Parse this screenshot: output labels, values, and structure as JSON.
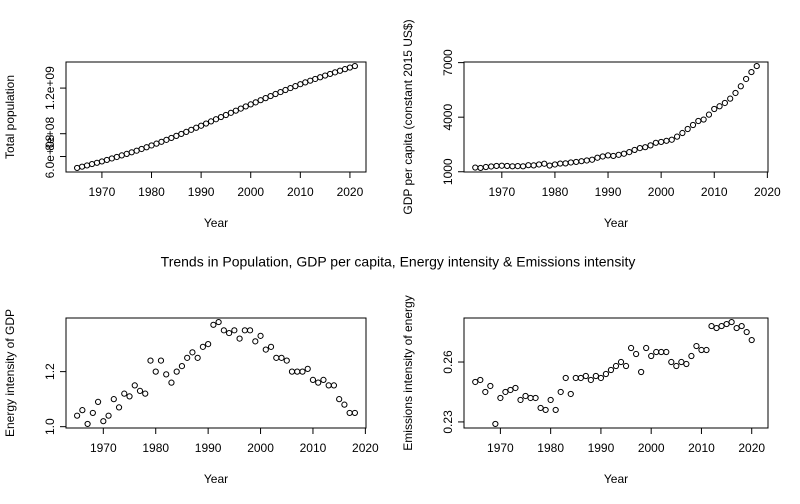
{
  "title": "Trends in Population, GDP per capita, Energy intensity & Emissions intensity",
  "chart_data": [
    {
      "type": "scatter",
      "xlabel": "Year",
      "ylabel": "Total population",
      "x": [
        1965,
        1966,
        1967,
        1968,
        1969,
        1970,
        1971,
        1972,
        1973,
        1974,
        1975,
        1976,
        1977,
        1978,
        1979,
        1980,
        1981,
        1982,
        1983,
        1984,
        1985,
        1986,
        1987,
        1988,
        1989,
        1990,
        1991,
        1992,
        1993,
        1994,
        1995,
        1996,
        1997,
        1998,
        1999,
        2000,
        2001,
        2002,
        2003,
        2004,
        2005,
        2006,
        2007,
        2008,
        2009,
        2010,
        2011,
        2012,
        2013,
        2014,
        2015,
        2016,
        2017,
        2018,
        2019,
        2020,
        2021
      ],
      "values": [
        500000000.0,
        511000000.0,
        522000000.0,
        534000000.0,
        545000000.0,
        557000000.0,
        570000000.0,
        583000000.0,
        596000000.0,
        610000000.0,
        623000000.0,
        637000000.0,
        651000000.0,
        666000000.0,
        681000000.0,
        697000000.0,
        713000000.0,
        729000000.0,
        746000000.0,
        763000000.0,
        781000000.0,
        798000000.0,
        816000000.0,
        834000000.0,
        852000000.0,
        870000000.0,
        889000000.0,
        908000000.0,
        927000000.0,
        946000000.0,
        964000000.0,
        983000000.0,
        1002000000.0,
        1020000000.0,
        1039000000.0,
        1057000000.0,
        1075000000.0,
        1094000000.0,
        1112000000.0,
        1130000000.0,
        1148000000.0,
        1165000000.0,
        1183000000.0,
        1200000000.0,
        1217000000.0,
        1234000000.0,
        1250000000.0,
        1265000000.0,
        1280000000.0,
        1295000000.0,
        1310000000.0,
        1324000000.0,
        1338000000.0,
        1352000000.0,
        1366000000.0,
        1380000000.0,
        1393000000.0
      ],
      "xlim": [
        1962.76,
        2023.24
      ],
      "xticks": [
        1970,
        1980,
        1990,
        2000,
        2010,
        2020
      ],
      "ylim": [
        464300000.0,
        1428700000.0
      ],
      "yticks": [
        {
          "value": 600000000.0,
          "label": "6.0e+08"
        },
        {
          "value": 800000000.0,
          "label": "8e+08"
        },
        {
          "value": 1200000000.0,
          "label": "1.2e+09"
        }
      ]
    },
    {
      "type": "scatter",
      "xlabel": "Year",
      "ylabel": "GDP per capita (constant 2015 US$)",
      "x": [
        1965,
        1966,
        1967,
        1968,
        1969,
        1970,
        1971,
        1972,
        1973,
        1974,
        1975,
        1976,
        1977,
        1978,
        1979,
        1980,
        1981,
        1982,
        1983,
        1984,
        1985,
        1986,
        1987,
        1988,
        1989,
        1990,
        1991,
        1992,
        1993,
        1994,
        1995,
        1996,
        1997,
        1998,
        1999,
        2000,
        2001,
        2002,
        2003,
        2004,
        2005,
        2006,
        2007,
        2008,
        2009,
        2010,
        2011,
        2012,
        2013,
        2014,
        2015,
        2016,
        2017,
        2018
      ],
      "values": [
        1230,
        1210,
        1260,
        1290,
        1320,
        1330,
        1320,
        1300,
        1310,
        1300,
        1360,
        1350,
        1400,
        1440,
        1340,
        1400,
        1450,
        1460,
        1510,
        1540,
        1580,
        1620,
        1660,
        1770,
        1840,
        1900,
        1870,
        1930,
        1990,
        2080,
        2200,
        2300,
        2350,
        2450,
        2590,
        2640,
        2700,
        2760,
        2930,
        3130,
        3350,
        3570,
        3790,
        3870,
        4140,
        4450,
        4600,
        4780,
        5020,
        5330,
        5700,
        6100,
        6480,
        6810
      ],
      "xlim": [
        1962.88,
        2020.12
      ],
      "xticks": [
        1970,
        1980,
        1990,
        2000,
        2010,
        2020
      ],
      "ylim": [
        986,
        7034
      ],
      "yticks": [
        1000,
        4000,
        7000
      ]
    },
    {
      "type": "scatter",
      "xlabel": "Year",
      "ylabel": "Energy intensity of GDP",
      "x": [
        1965,
        1966,
        1967,
        1968,
        1969,
        1970,
        1971,
        1972,
        1973,
        1974,
        1975,
        1976,
        1977,
        1978,
        1979,
        1980,
        1981,
        1982,
        1983,
        1984,
        1985,
        1986,
        1987,
        1988,
        1989,
        1990,
        1991,
        1992,
        1993,
        1994,
        1995,
        1996,
        1997,
        1998,
        1999,
        2000,
        2001,
        2002,
        2003,
        2004,
        2005,
        2006,
        2007,
        2008,
        2009,
        2010,
        2011,
        2012,
        2013,
        2014,
        2015,
        2016,
        2017,
        2018
      ],
      "values": [
        1.04,
        1.06,
        1.01,
        1.05,
        1.09,
        1.02,
        1.04,
        1.1,
        1.07,
        1.12,
        1.11,
        1.15,
        1.13,
        1.12,
        1.24,
        1.2,
        1.24,
        1.19,
        1.16,
        1.2,
        1.22,
        1.25,
        1.27,
        1.25,
        1.29,
        1.3,
        1.37,
        1.38,
        1.35,
        1.34,
        1.35,
        1.32,
        1.35,
        1.35,
        1.31,
        1.33,
        1.28,
        1.29,
        1.25,
        1.25,
        1.24,
        1.2,
        1.2,
        1.2,
        1.21,
        1.17,
        1.16,
        1.17,
        1.15,
        1.15,
        1.1,
        1.08,
        1.05,
        1.05
      ],
      "xlim": [
        1962.88,
        2020.12
      ],
      "xticks": [
        1970,
        1980,
        1990,
        2000,
        2010,
        2020
      ],
      "ylim": [
        0.9952,
        1.3948
      ],
      "yticks": [
        {
          "value": 1,
          "label": "1.0"
        },
        1.2
      ]
    },
    {
      "type": "scatter",
      "xlabel": "Year",
      "ylabel": "Emissions intensity of energy",
      "x": [
        1965,
        1966,
        1967,
        1968,
        1969,
        1970,
        1971,
        1972,
        1973,
        1974,
        1975,
        1976,
        1977,
        1978,
        1979,
        1980,
        1981,
        1982,
        1983,
        1984,
        1985,
        1986,
        1987,
        1988,
        1989,
        1990,
        1991,
        1992,
        1993,
        1994,
        1995,
        1996,
        1997,
        1998,
        1999,
        2000,
        2001,
        2002,
        2003,
        2004,
        2005,
        2006,
        2007,
        2008,
        2009,
        2010,
        2011,
        2012,
        2013,
        2014,
        2015,
        2016,
        2017,
        2018,
        2019,
        2020
      ],
      "values": [
        0.25,
        0.251,
        0.245,
        0.248,
        0.229,
        0.242,
        0.245,
        0.246,
        0.247,
        0.241,
        0.243,
        0.242,
        0.242,
        0.237,
        0.236,
        0.241,
        0.236,
        0.245,
        0.252,
        0.244,
        0.252,
        0.252,
        0.253,
        0.251,
        0.253,
        0.252,
        0.254,
        0.256,
        0.258,
        0.26,
        0.258,
        0.267,
        0.264,
        0.255,
        0.267,
        0.263,
        0.265,
        0.265,
        0.265,
        0.26,
        0.258,
        0.26,
        0.259,
        0.263,
        0.268,
        0.266,
        0.266,
        0.278,
        0.277,
        0.278,
        0.279,
        0.28,
        0.277,
        0.278,
        0.275,
        0.271
      ],
      "xlim": [
        1962.76,
        2023.24
      ],
      "xticks": [
        1970,
        1980,
        1990,
        2000,
        2010,
        2020
      ],
      "ylim": [
        0.22696,
        0.28204
      ],
      "yticks": [
        0.23,
        0.26
      ]
    }
  ]
}
